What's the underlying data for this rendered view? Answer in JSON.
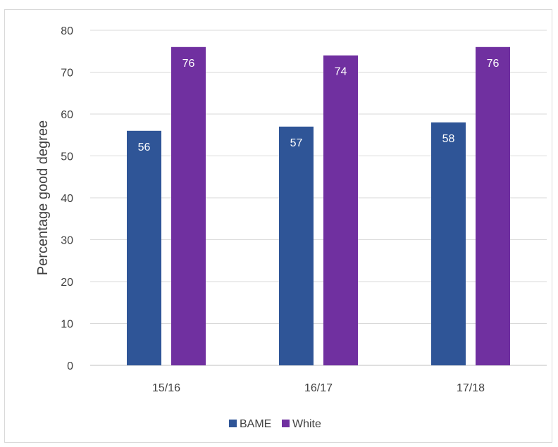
{
  "chart_data": {
    "type": "bar",
    "title": "",
    "xlabel": "",
    "ylabel": "Percentage good degree",
    "ylim": [
      0,
      80
    ],
    "yticks": [
      0,
      10,
      20,
      30,
      40,
      50,
      60,
      70,
      80
    ],
    "categories": [
      "15/16",
      "16/17",
      "17/18"
    ],
    "series": [
      {
        "name": "BAME",
        "values": [
          56,
          57,
          58
        ],
        "color": "#2f5597"
      },
      {
        "name": "White",
        "values": [
          76,
          74,
          76
        ],
        "color": "#7030a0"
      }
    ],
    "grid": true,
    "legend_position": "bottom"
  }
}
